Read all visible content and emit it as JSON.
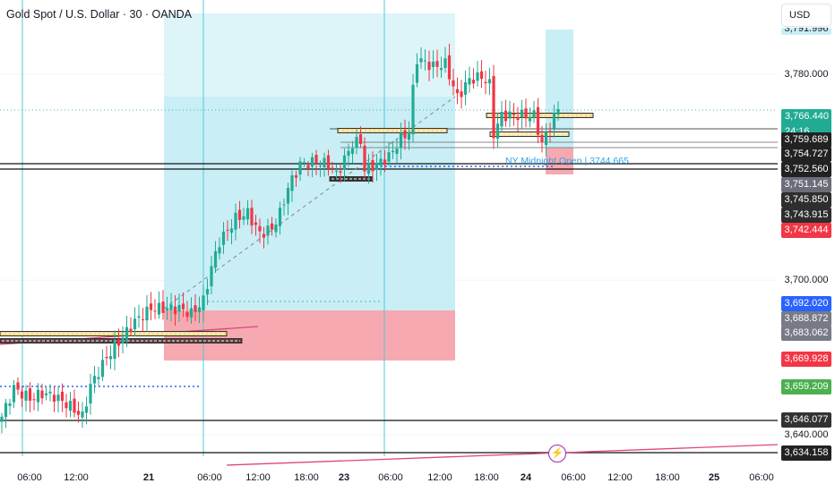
{
  "header": {
    "symbol_title": "Gold Spot / U.S. Dollar · 30 · OANDA",
    "currency": "USD"
  },
  "price_axis": {
    "labels": [
      {
        "text": "3,791.996",
        "price": 3791.996,
        "style": "cyan-partial"
      },
      {
        "text": "3,780.000",
        "price": 3780,
        "style": "plain"
      },
      {
        "text": "3,700.000",
        "price": 3700,
        "style": "plain"
      },
      {
        "text": "3,640.000",
        "price": 3640,
        "style": "plain"
      }
    ],
    "current_price": {
      "text": "3,766.440",
      "countdown": "24:16",
      "color": "#22ab94"
    },
    "markers": [
      {
        "text": "3,759.689",
        "price": 3759.689,
        "color": "#222222"
      },
      {
        "text": "3,754.727",
        "price": 3754.727,
        "color": "#222222"
      },
      {
        "text": "3,752.560",
        "price": 3752.56,
        "color": "#222222"
      },
      {
        "text": "3,751.145",
        "price": 3751.145,
        "color": "#6b6e78"
      },
      {
        "text": "3,745.850",
        "price": 3745.85,
        "color": "#2e2e2e"
      },
      {
        "text": "3,743.915",
        "price": 3743.915,
        "color": "#2e2e2e"
      },
      {
        "text": "3,742.444",
        "price": 3742.444,
        "color": "#f23645"
      },
      {
        "text": "3,692.020",
        "price": 3692.02,
        "color": "#2962ff"
      },
      {
        "text": "3,688.872",
        "price": 3688.872,
        "color": "#787b86"
      },
      {
        "text": "3,683.062",
        "price": 3683.062,
        "color": "#787b86"
      },
      {
        "text": "3,669.928",
        "price": 3669.928,
        "color": "#f23645"
      },
      {
        "text": "3,659.209",
        "price": 3659.209,
        "color": "#4caf50"
      },
      {
        "text": "3,646.077",
        "price": 3646.077,
        "color": "#333333"
      },
      {
        "text": "3,634.158",
        "price": 3634.158,
        "color": "#222222"
      }
    ]
  },
  "time_axis": [
    {
      "text": "06:00",
      "bold": false
    },
    {
      "text": "12:00",
      "bold": false
    },
    {
      "text": "21",
      "bold": true
    },
    {
      "text": "06:00",
      "bold": false
    },
    {
      "text": "12:00",
      "bold": false
    },
    {
      "text": "18:00",
      "bold": false
    },
    {
      "text": "23",
      "bold": true
    },
    {
      "text": "06:00",
      "bold": false
    },
    {
      "text": "12:00",
      "bold": false
    },
    {
      "text": "18:00",
      "bold": false
    },
    {
      "text": "24",
      "bold": true
    },
    {
      "text": "06:00",
      "bold": false
    },
    {
      "text": "12:00",
      "bold": false
    },
    {
      "text": "18:00",
      "bold": false
    },
    {
      "text": "25",
      "bold": true
    },
    {
      "text": "06:00",
      "bold": false
    }
  ],
  "annotations": {
    "ny_midnight": "NY Midnight Open | 3744.665",
    "ny_midnight_price": 3744.665,
    "bolt_icon": "⚡"
  },
  "colors": {
    "up": "#22ab94",
    "down": "#f23645",
    "target_zone": "#c9eef5",
    "stop_zone": "#f7a9b1",
    "session_line": "#4fc9d9"
  },
  "chart_data": {
    "type": "candlestick",
    "symbol": "XAUUSD",
    "timeframe": "30",
    "ylim": [
      3628,
      3800
    ],
    "close_path": [
      {
        "bar": 0,
        "close": 3647
      },
      {
        "bar": 3,
        "close": 3658
      },
      {
        "bar": 7,
        "close": 3654
      },
      {
        "bar": 10,
        "close": 3656
      },
      {
        "bar": 13,
        "close": 3655
      },
      {
        "bar": 17,
        "close": 3651
      },
      {
        "bar": 20,
        "close": 3647
      },
      {
        "bar": 22,
        "close": 3659
      },
      {
        "bar": 26,
        "close": 3670
      },
      {
        "bar": 30,
        "close": 3678
      },
      {
        "bar": 33,
        "close": 3684
      },
      {
        "bar": 37,
        "close": 3689
      },
      {
        "bar": 41,
        "close": 3689
      },
      {
        "bar": 44,
        "close": 3689
      },
      {
        "bar": 47,
        "close": 3687
      },
      {
        "bar": 50,
        "close": 3692
      },
      {
        "bar": 52,
        "close": 3705
      },
      {
        "bar": 54,
        "close": 3715
      },
      {
        "bar": 58,
        "close": 3724
      },
      {
        "bar": 61,
        "close": 3726
      },
      {
        "bar": 64,
        "close": 3718
      },
      {
        "bar": 67,
        "close": 3720
      },
      {
        "bar": 69,
        "close": 3726
      },
      {
        "bar": 71,
        "close": 3736
      },
      {
        "bar": 74,
        "close": 3745
      },
      {
        "bar": 78,
        "close": 3746
      },
      {
        "bar": 81,
        "close": 3745
      },
      {
        "bar": 83,
        "close": 3741
      },
      {
        "bar": 87,
        "close": 3753
      },
      {
        "bar": 89,
        "close": 3754
      },
      {
        "bar": 90,
        "close": 3743
      },
      {
        "bar": 93,
        "close": 3745
      },
      {
        "bar": 96,
        "close": 3748
      },
      {
        "bar": 99,
        "close": 3755
      },
      {
        "bar": 101,
        "close": 3758
      },
      {
        "bar": 102,
        "close": 3774
      },
      {
        "bar": 103,
        "close": 3786
      },
      {
        "bar": 107,
        "close": 3783
      },
      {
        "bar": 110,
        "close": 3784
      },
      {
        "bar": 113,
        "close": 3771
      },
      {
        "bar": 116,
        "close": 3778
      },
      {
        "bar": 119,
        "close": 3779
      },
      {
        "bar": 121,
        "close": 3776
      },
      {
        "bar": 122,
        "close": 3757
      },
      {
        "bar": 124,
        "close": 3764
      },
      {
        "bar": 129,
        "close": 3764
      },
      {
        "bar": 132,
        "close": 3764
      },
      {
        "bar": 134,
        "close": 3753
      },
      {
        "bar": 136,
        "close": 3760
      },
      {
        "bar": 138,
        "close": 3766.44
      }
    ]
  }
}
